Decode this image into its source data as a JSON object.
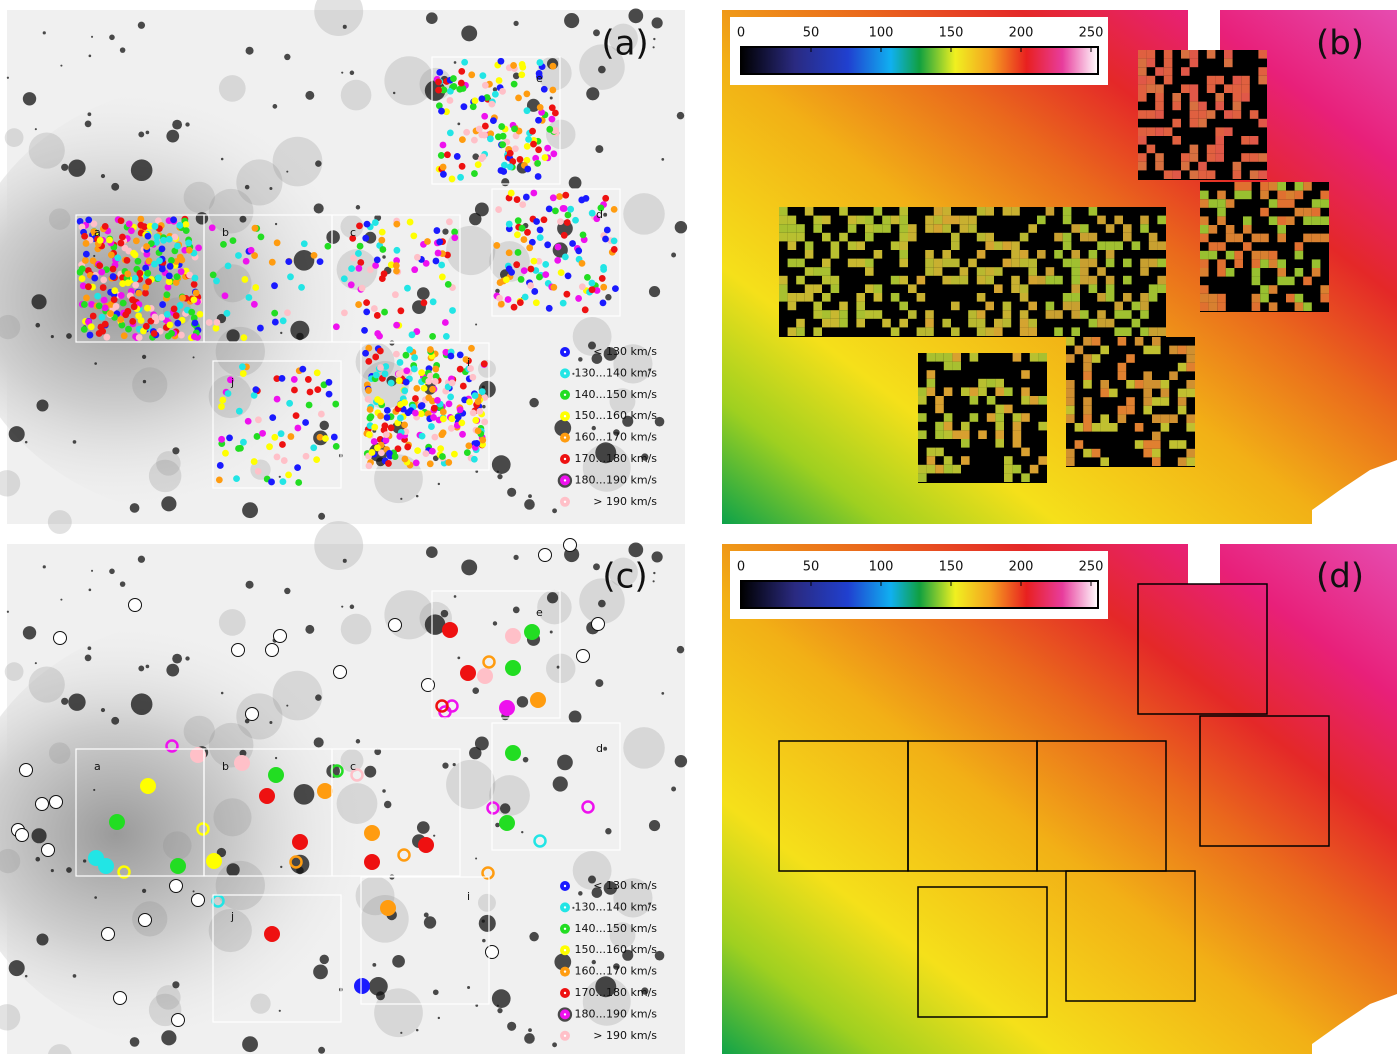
{
  "panels": [
    {
      "label": "(a)"
    },
    {
      "label": "(b)"
    },
    {
      "label": "(c)"
    },
    {
      "label": "(d)"
    }
  ],
  "fields": [
    "a",
    "b",
    "c",
    "d",
    "e",
    "i",
    "j"
  ],
  "legend": [
    {
      "label": "< 130 km/s",
      "color": "#1a1aff"
    },
    {
      "label": "130...140 km/s",
      "color": "#22e5e5"
    },
    {
      "label": "140...150 km/s",
      "color": "#22dd22"
    },
    {
      "label": "150...160 km/s",
      "color": "#ffff00"
    },
    {
      "label": "160...170 km/s",
      "color": "#ff9c10"
    },
    {
      "label": "170...180 km/s",
      "color": "#ee1111"
    },
    {
      "label": "180...190 km/s",
      "color": "#ee11ee"
    },
    {
      "label": "> 190 km/s",
      "color": "#ffc0c8"
    }
  ],
  "colorbar": {
    "lim": [
      0,
      255
    ],
    "ticks": [
      0,
      50,
      100,
      150,
      200,
      250
    ]
  }
}
